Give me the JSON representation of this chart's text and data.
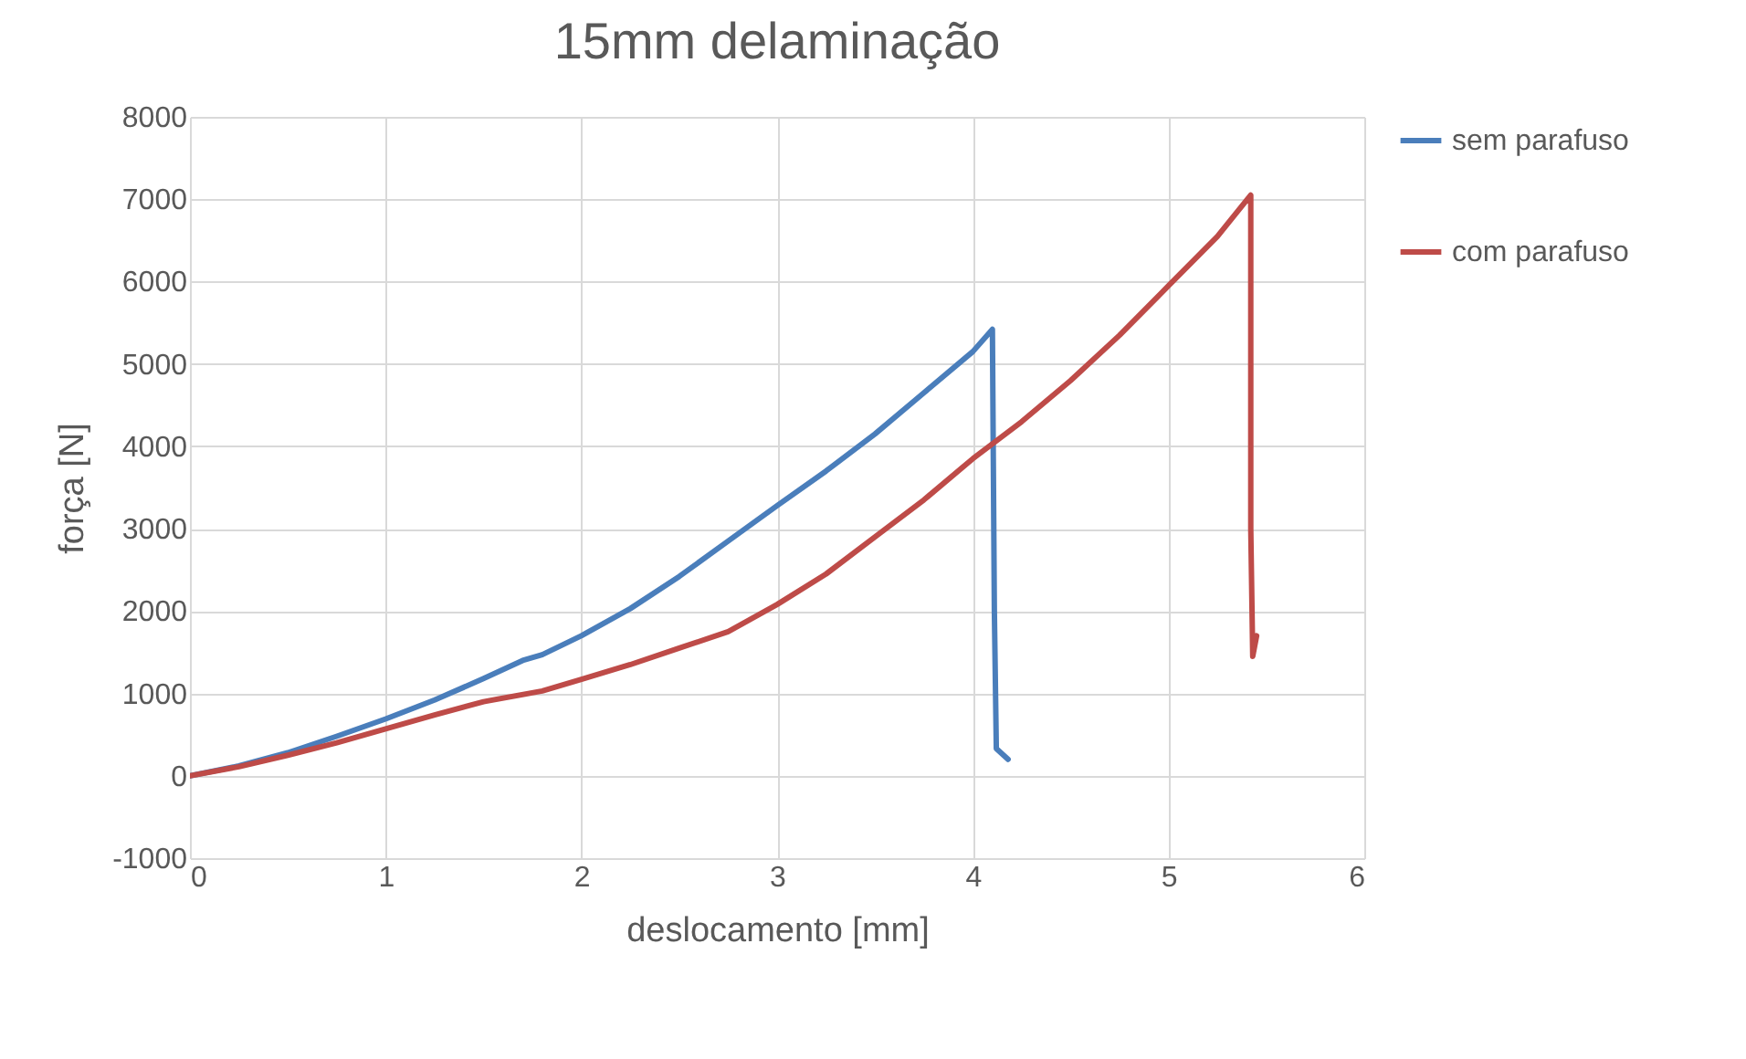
{
  "chart_data": {
    "type": "line",
    "title": "15mm delaminação",
    "xlabel": "deslocamento [mm]",
    "ylabel": "força [N]",
    "xlim": [
      0,
      6
    ],
    "xticks": [
      0,
      1,
      2,
      3,
      4,
      5,
      6
    ],
    "ylim": [
      -1000,
      8000
    ],
    "yticks": [
      -1000,
      0,
      1000,
      2000,
      3000,
      4000,
      5000,
      6000,
      7000,
      8000
    ],
    "grid": true,
    "legend": "right",
    "line_style": "solid",
    "marker": "none",
    "series": [
      {
        "name": "sem parafuso",
        "color": "#4a7ebb",
        "x": [
          0,
          0.25,
          0.5,
          0.75,
          1,
          1.25,
          1.5,
          1.7,
          1.8,
          2,
          2.25,
          2.5,
          2.75,
          3,
          3.25,
          3.5,
          3.75,
          4,
          4.1,
          4.11,
          4.12,
          4.18
        ],
        "values": [
          0,
          120,
          280,
          480,
          690,
          920,
          1180,
          1400,
          1470,
          1700,
          2030,
          2420,
          2850,
          3280,
          3700,
          4150,
          4650,
          5150,
          5420,
          2000,
          330,
          200
        ]
      },
      {
        "name": "com parafuso",
        "color": "#be4b48",
        "x": [
          0,
          0.25,
          0.5,
          0.75,
          1,
          1.25,
          1.5,
          1.8,
          2,
          2.25,
          2.5,
          2.75,
          3,
          3.25,
          3.5,
          3.75,
          4,
          4.25,
          4.5,
          4.75,
          5,
          5.25,
          5.42,
          5.42,
          5.43,
          5.45
        ],
        "values": [
          0,
          110,
          250,
          400,
          570,
          740,
          900,
          1030,
          1170,
          1350,
          1550,
          1750,
          2080,
          2450,
          2900,
          3350,
          3850,
          4300,
          4800,
          5350,
          5950,
          6550,
          7050,
          3000,
          1450,
          1700
        ]
      }
    ]
  }
}
